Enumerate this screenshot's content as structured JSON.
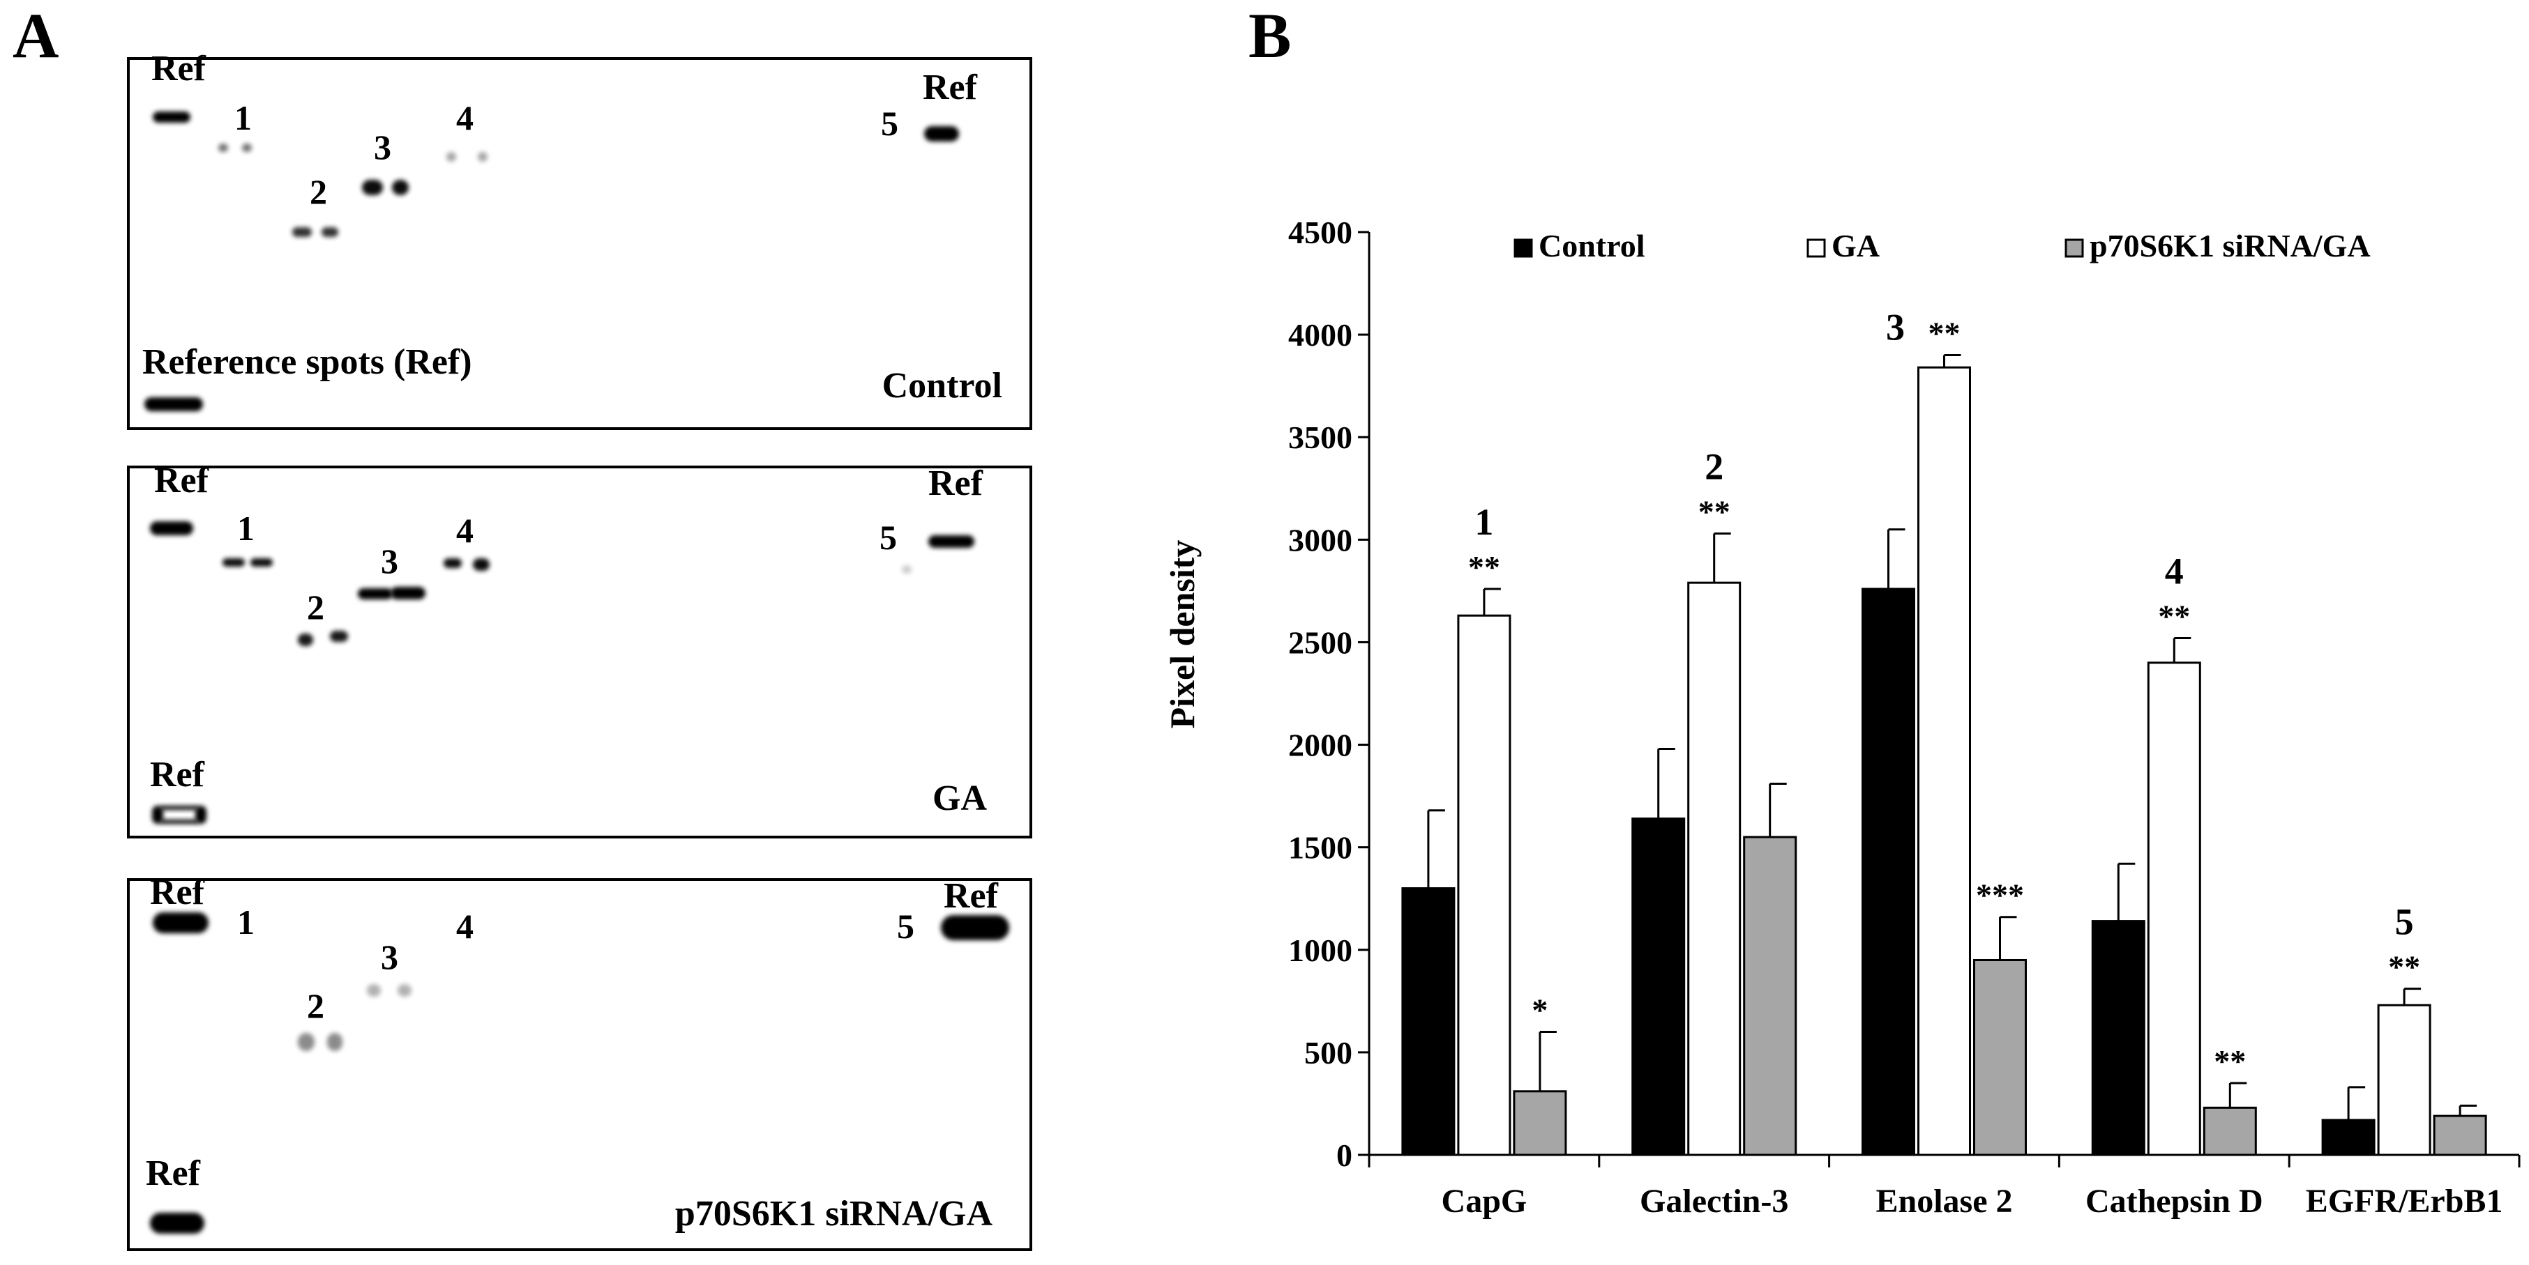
{
  "figure": {
    "panel_a_label": "A",
    "panel_b_label": "B"
  },
  "blots": [
    {
      "condition_label": "Control",
      "ref_labels": [
        "Ref",
        "Ref"
      ],
      "ref_note": "Reference spots (Ref)",
      "spot_numbers": [
        "1",
        "2",
        "3",
        "4",
        "5"
      ],
      "spot_intensity": [
        0.55,
        0.8,
        0.95,
        0.35,
        1.0
      ]
    },
    {
      "condition_label": "GA",
      "ref_labels": [
        "Ref",
        "Ref",
        "Ref"
      ],
      "ref_note": "",
      "spot_numbers": [
        "1",
        "2",
        "3",
        "4",
        "5"
      ],
      "spot_intensity": [
        0.95,
        0.9,
        1.0,
        0.95,
        0.2
      ]
    },
    {
      "condition_label": "p70S6K1 siRNA/GA",
      "ref_labels": [
        "Ref",
        "Ref",
        "Ref"
      ],
      "ref_note": "",
      "spot_numbers": [
        "1",
        "2",
        "3",
        "4",
        "5"
      ],
      "spot_intensity": [
        0.0,
        0.45,
        0.3,
        0.0,
        1.0
      ]
    }
  ],
  "chart_data": {
    "type": "bar",
    "title": "",
    "xlabel": "",
    "ylabel": "Pixel density",
    "ylim": [
      0,
      4500
    ],
    "yticks": [
      0,
      500,
      1000,
      1500,
      2000,
      2500,
      3000,
      3500,
      4000,
      4500
    ],
    "grid": false,
    "legend_position": "top",
    "categories": [
      "CapG",
      "Galectin-3",
      "Enolase 2",
      "Cathepsin D",
      "EGFR/ErbB1"
    ],
    "category_numbers": [
      "1",
      "2",
      "3",
      "4",
      "5"
    ],
    "series": [
      {
        "name": "Control",
        "color": "#000000",
        "values": [
          1300,
          1640,
          2760,
          1140,
          170
        ],
        "errors": [
          380,
          340,
          290,
          280,
          160
        ],
        "significance": [
          "",
          "",
          "",
          "",
          ""
        ]
      },
      {
        "name": "GA",
        "color": "#ffffff",
        "values": [
          2630,
          2790,
          3840,
          2400,
          730
        ],
        "errors": [
          130,
          240,
          60,
          120,
          80
        ],
        "significance": [
          "**",
          "**",
          "**",
          "**",
          "**"
        ]
      },
      {
        "name": "p70S6K1 siRNA/GA",
        "color": "#a6a6a6",
        "values": [
          310,
          1550,
          950,
          230,
          190
        ],
        "errors": [
          290,
          260,
          210,
          120,
          50
        ],
        "significance": [
          "*",
          "",
          "***",
          "**",
          ""
        ]
      }
    ]
  }
}
